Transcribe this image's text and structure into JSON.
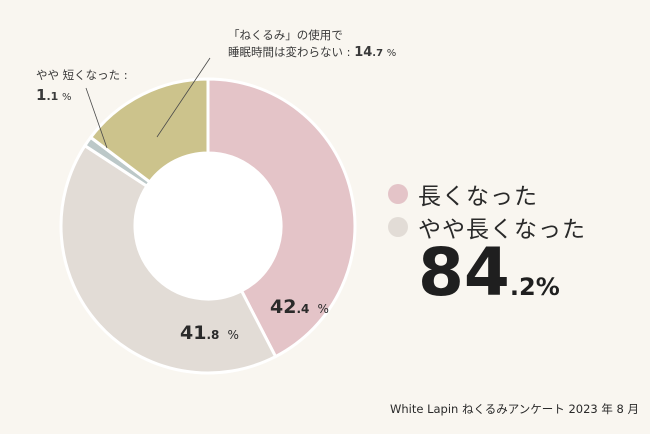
{
  "chart_data": {
    "type": "pie",
    "donut": true,
    "slices": [
      {
        "label": "長くなった",
        "value": 42.4,
        "value_main": "42",
        "value_decimal": ".4",
        "unit": "%",
        "color": "#e4c4c8"
      },
      {
        "label": "やや長くなった",
        "value": 41.8,
        "value_main": "41",
        "value_decimal": ".8",
        "unit": "%",
        "color": "#e2dcd6"
      },
      {
        "label": "やや 短くなった :",
        "value": 1.1,
        "value_main": "1",
        "value_decimal": ".1",
        "unit": "%",
        "color": "#bcc8c8"
      },
      {
        "label_line1": "「ねくるみ」の使用で",
        "label_line2": "睡眠時間は変わらない :",
        "value": 14.7,
        "value_main": "14",
        "value_decimal": ".7",
        "unit": "%",
        "color": "#ccc38c"
      }
    ],
    "legend": [
      {
        "label": "長くなった",
        "color": "#e4c4c8"
      },
      {
        "label": "やや長くなった",
        "color": "#e2dcd6"
      }
    ],
    "legend_position": "right"
  },
  "summary": {
    "total_main": "84",
    "total_decimal": ".2",
    "unit": "%"
  },
  "credit": "White Lapin ねくるみアンケート 2023 年 8 月"
}
